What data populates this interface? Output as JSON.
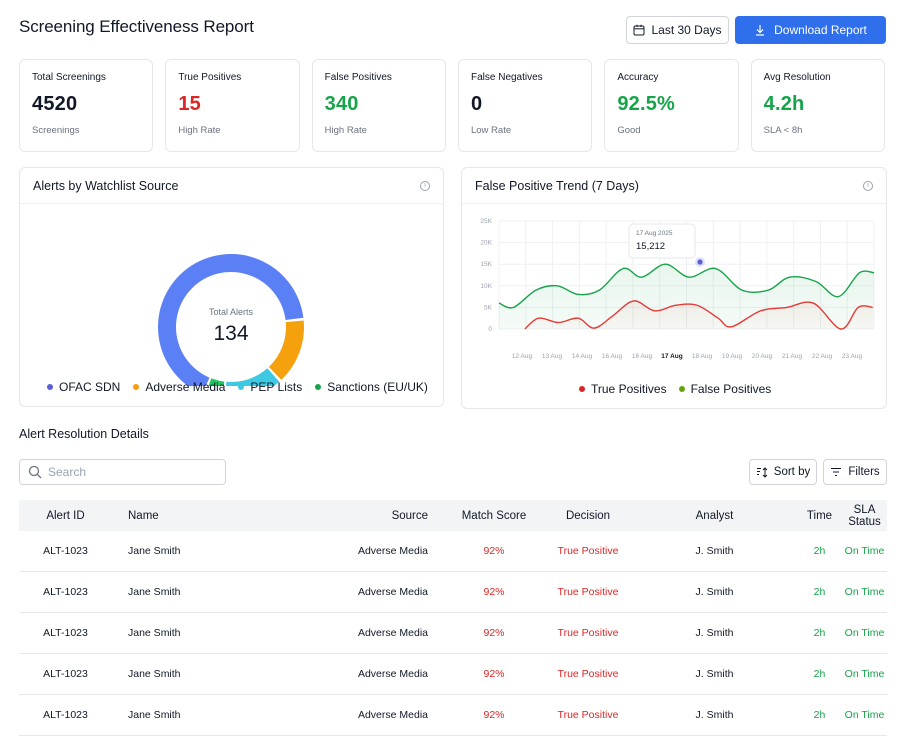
{
  "header": {
    "title": "Screening Effectiveness Report",
    "date_range_label": "Last 30 Days",
    "download_label": "Download Report"
  },
  "kpis": [
    {
      "label": "Total Screenings",
      "value": "4520",
      "sub": "Screenings",
      "color": "#111827"
    },
    {
      "label": "True Positives",
      "value": "15",
      "sub": "High Rate",
      "color": "#dc2626"
    },
    {
      "label": "False Positives",
      "value": "340",
      "sub": "High Rate",
      "color": "#16a34a"
    },
    {
      "label": "False Negatives",
      "value": "0",
      "sub": "Low Rate",
      "color": "#111827"
    },
    {
      "label": "Accuracy",
      "value": "92.5%",
      "sub": "Good",
      "color": "#16a34a"
    },
    {
      "label": "Avg Resolution",
      "value": "4.2h",
      "sub": "SLA < 8h",
      "color": "#16a34a"
    }
  ],
  "donut_panel": {
    "title": "Alerts by Watchlist Source",
    "center_label": "Total Alerts",
    "center_value": "134"
  },
  "line_panel": {
    "title": "False Positive Trend (7 Days)",
    "tooltip": {
      "date": "17 Aug 2025",
      "value": "15,212"
    }
  },
  "chart_data": [
    {
      "type": "pie",
      "categories": [
        "OFAC SDN",
        "Adverse Media",
        "PEP Lists",
        "Sanctions (EU/UK)"
      ],
      "values": [
        90,
        20,
        6,
        18
      ],
      "colors": [
        "#5b7ff5",
        "#f5a10e",
        "#22c55e",
        "#3ec9e3"
      ],
      "slice_order": [
        "OFAC SDN",
        "Adverse Media",
        "Sanctions (EU/UK)",
        "PEP Lists"
      ],
      "legend": "bottom"
    },
    {
      "type": "area",
      "x": [
        "12 Aug",
        "13 Aug",
        "14 Aug",
        "16 Aug",
        "16 Aug",
        "17 Aug",
        "18 Aug",
        "19 Aug",
        "20 Aug",
        "21 Aug",
        "22 Aug",
        "23 Aug"
      ],
      "x_highlight": "17 Aug",
      "y_ticks": [
        "25K",
        "20K",
        "15K",
        "10K",
        "5K",
        "0"
      ],
      "ylim": [
        0,
        25000
      ],
      "series": [
        {
          "name": "True Positives",
          "color": "#e53935",
          "points": [
            [
              0.98,
              0
            ],
            [
              1.5,
              2500
            ],
            [
              2.25,
              1500
            ],
            [
              3.0,
              2500
            ],
            [
              3.6,
              200
            ],
            [
              4.3,
              3000
            ],
            [
              5.1,
              6500
            ],
            [
              5.9,
              4200
            ],
            [
              6.7,
              5500
            ],
            [
              7.5,
              5500
            ],
            [
              8.3,
              2500
            ],
            [
              8.8,
              500
            ],
            [
              9.9,
              4200
            ],
            [
              10.9,
              5000
            ],
            [
              11.9,
              6000
            ],
            [
              12.95,
              0
            ],
            [
              13.6,
              5000
            ],
            [
              14.15,
              5000
            ]
          ]
        },
        {
          "name": "False Positives",
          "color": "#16a34a",
          "points": [
            [
              0,
              6000
            ],
            [
              0.55,
              5000
            ],
            [
              1.4,
              9000
            ],
            [
              2.2,
              10000
            ],
            [
              3.0,
              8000
            ],
            [
              3.8,
              9000
            ],
            [
              4.7,
              14000
            ],
            [
              5.4,
              12000
            ],
            [
              6.3,
              15000
            ],
            [
              7.2,
              12000
            ],
            [
              8.2,
              14000
            ],
            [
              9.2,
              9000
            ],
            [
              10.2,
              9000
            ],
            [
              11.0,
              12000
            ],
            [
              12.0,
              11000
            ],
            [
              12.85,
              7500
            ],
            [
              13.65,
              13000
            ],
            [
              14.2,
              13000
            ]
          ]
        }
      ],
      "legend": "bottom",
      "grid": true
    }
  ],
  "legend_donut": [
    "OFAC SDN",
    "Adverse Media",
    "PEP Lists",
    "Sanctions (EU/UK)"
  ],
  "legend_line": [
    "True Positives",
    "False Positives"
  ],
  "table": {
    "title": "Alert Resolution Details",
    "search_placeholder": "Search",
    "sort_label": "Sort by",
    "filter_label": "Filters",
    "columns": [
      "Alert ID",
      "Name",
      "Source",
      "Match Score",
      "Decision",
      "Analyst",
      "Time",
      "SLA Status"
    ],
    "rows": [
      [
        "ALT-1023",
        "Jane Smith",
        "Adverse Media",
        "92%",
        "True Positive",
        "J. Smith",
        "2h",
        "On Time"
      ],
      [
        "ALT-1023",
        "Jane Smith",
        "Adverse Media",
        "92%",
        "True Positive",
        "J. Smith",
        "2h",
        "On Time"
      ],
      [
        "ALT-1023",
        "Jane Smith",
        "Adverse Media",
        "92%",
        "True Positive",
        "J. Smith",
        "2h",
        "On Time"
      ],
      [
        "ALT-1023",
        "Jane Smith",
        "Adverse Media",
        "92%",
        "True Positive",
        "J. Smith",
        "2h",
        "On Time"
      ],
      [
        "ALT-1023",
        "Jane Smith",
        "Adverse Media",
        "92%",
        "True Positive",
        "J. Smith",
        "2h",
        "On Time"
      ]
    ]
  }
}
